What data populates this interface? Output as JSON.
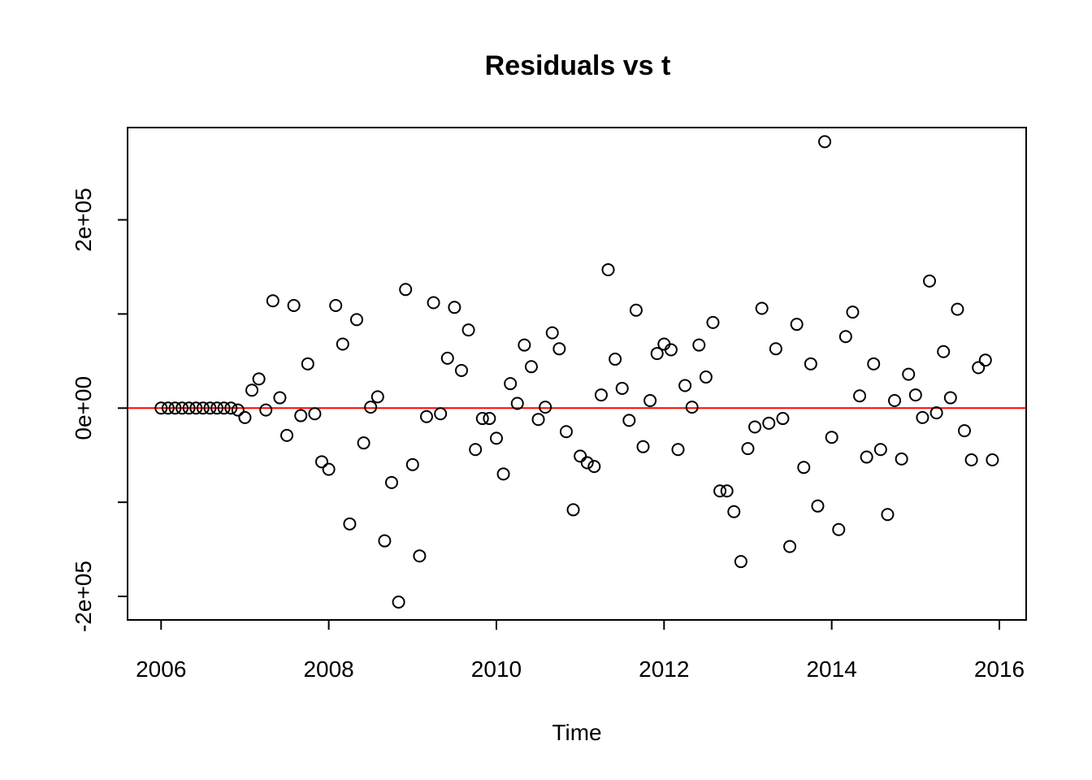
{
  "chart_data": {
    "type": "scatter",
    "title": "Residuals vs t",
    "xlabel": "Time",
    "ylabel": "",
    "xlim": [
      2005.6,
      2016.32
    ],
    "ylim": [
      -225000,
      298000
    ],
    "x_ticks": [
      2006,
      2008,
      2010,
      2012,
      2014,
      2016
    ],
    "x_tick_labels": [
      "2006",
      "2008",
      "2010",
      "2012",
      "2014",
      "2016"
    ],
    "y_ticks": [
      -200000,
      -100000,
      0,
      100000,
      200000
    ],
    "y_tick_labels": [
      "-2e+05",
      "",
      "0e+00",
      "",
      "2e+05"
    ],
    "reference_line": {
      "y": 0,
      "color": "#ff0000"
    },
    "point_color": "#000000",
    "grid": false,
    "start": {
      "year": 2006,
      "month": 1
    },
    "residuals": [
      0,
      0,
      0,
      0,
      0,
      0,
      0,
      0,
      0,
      0,
      0,
      -2000,
      -10000,
      19000,
      31000,
      -2000,
      114000,
      11000,
      -29000,
      109000,
      -8000,
      47000,
      -6000,
      -57000,
      -65000,
      109000,
      68000,
      -123000,
      94000,
      -37000,
      1000,
      12000,
      -141000,
      -79000,
      -206000,
      126000,
      -60000,
      -157000,
      -9000,
      112000,
      -6000,
      53000,
      107000,
      40000,
      83000,
      -44000,
      -11000,
      -11000,
      -32000,
      -70000,
      26000,
      5000,
      67000,
      44000,
      -12000,
      1000,
      80000,
      63000,
      -25000,
      -108000,
      -51000,
      -58000,
      -62000,
      14000,
      147000,
      52000,
      21000,
      -13000,
      104000,
      -41000,
      8000,
      58000,
      68000,
      62000,
      -44000,
      24000,
      1000,
      67000,
      33000,
      91000,
      -88000,
      -88000,
      -110000,
      -163000,
      -43000,
      -20000,
      106000,
      -16000,
      63000,
      -11000,
      -147000,
      89000,
      -63000,
      47000,
      -104000,
      283000,
      -31000,
      -129000,
      76000,
      102000,
      13000,
      -52000,
      47000,
      -44000,
      -113000,
      8000,
      -54000,
      36000,
      14000,
      -10000,
      135000,
      -5000,
      60000,
      11000,
      105000,
      -24000,
      -55000,
      43000,
      51000,
      -55000
    ]
  }
}
